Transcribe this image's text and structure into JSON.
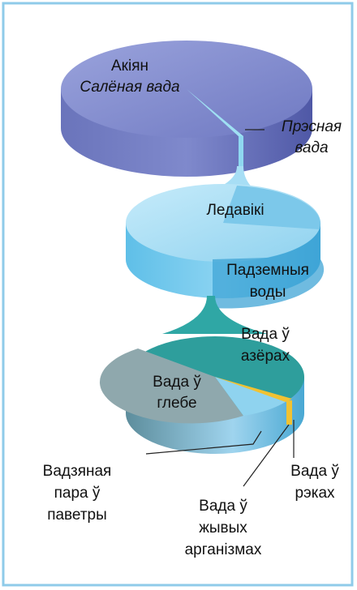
{
  "ocean": {
    "title": "Акіян",
    "subtitle": "Салёная вада"
  },
  "fresh_water": {
    "lines": [
      "Прэсная",
      "вада"
    ]
  },
  "glaciers": {
    "label": "Ледавікі"
  },
  "groundwater": {
    "lines": [
      "Падземныя",
      "воды"
    ]
  },
  "lakes": {
    "lines": [
      "Вада ў",
      "азёрах"
    ]
  },
  "soil": {
    "lines": [
      "Вада ў",
      "глебе"
    ]
  },
  "vapor": {
    "lines": [
      "Вадзяная",
      "пара ў",
      "паветры"
    ]
  },
  "rivers": {
    "lines": [
      "Вада ў",
      "рэках"
    ]
  },
  "organisms": {
    "lines": [
      "Вада ў",
      "жывых",
      "арганізмах"
    ]
  }
}
